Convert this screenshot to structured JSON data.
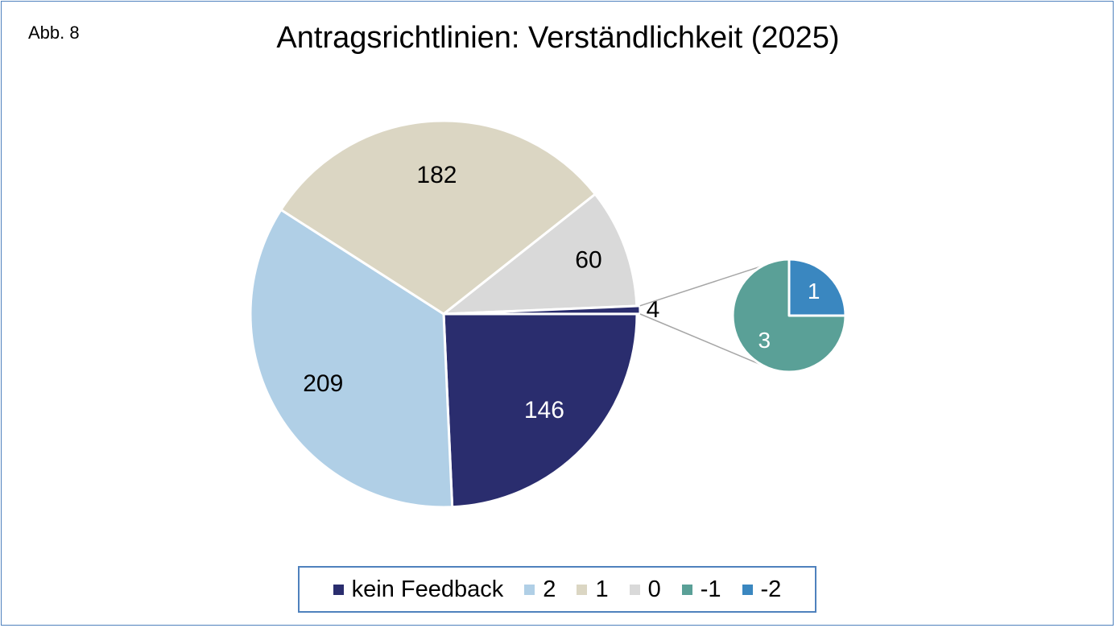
{
  "figure_label": "Abb. 8",
  "chart_data": {
    "type": "pie",
    "title": "Antragsrichtlinien: Verständlichkeit (2025)",
    "main_pie": {
      "slices": [
        {
          "category": "kein Feedback",
          "value": 146,
          "color": "#2a2d6e",
          "label_color": "#ffffff"
        },
        {
          "category": "2",
          "value": 209,
          "color": "#b0cfe6",
          "label_color": "#000000"
        },
        {
          "category": "1",
          "value": 182,
          "color": "#dbd6c3",
          "label_color": "#000000"
        },
        {
          "category": "0",
          "value": 60,
          "color": "#d9d9d9",
          "label_color": "#000000"
        },
        {
          "category": "-1 / -2",
          "value": 4,
          "color": "#2a2d6e",
          "label_color": "#000000"
        }
      ]
    },
    "sub_pie": {
      "slices": [
        {
          "category": "-2",
          "value": 1,
          "color": "#3a87c0",
          "label_color": "#ffffff"
        },
        {
          "category": "-1",
          "value": 3,
          "color": "#5aa097",
          "label_color": "#ffffff"
        }
      ]
    },
    "legend": [
      {
        "label": "kein Feedback",
        "color": "#2a2d6e"
      },
      {
        "label": "2",
        "color": "#b0cfe6"
      },
      {
        "label": "1",
        "color": "#dbd6c3"
      },
      {
        "label": "0",
        "color": "#d9d9d9"
      },
      {
        "label": "-1",
        "color": "#5aa097"
      },
      {
        "label": "-2",
        "color": "#3a87c0"
      }
    ],
    "legend_position": "bottom"
  }
}
